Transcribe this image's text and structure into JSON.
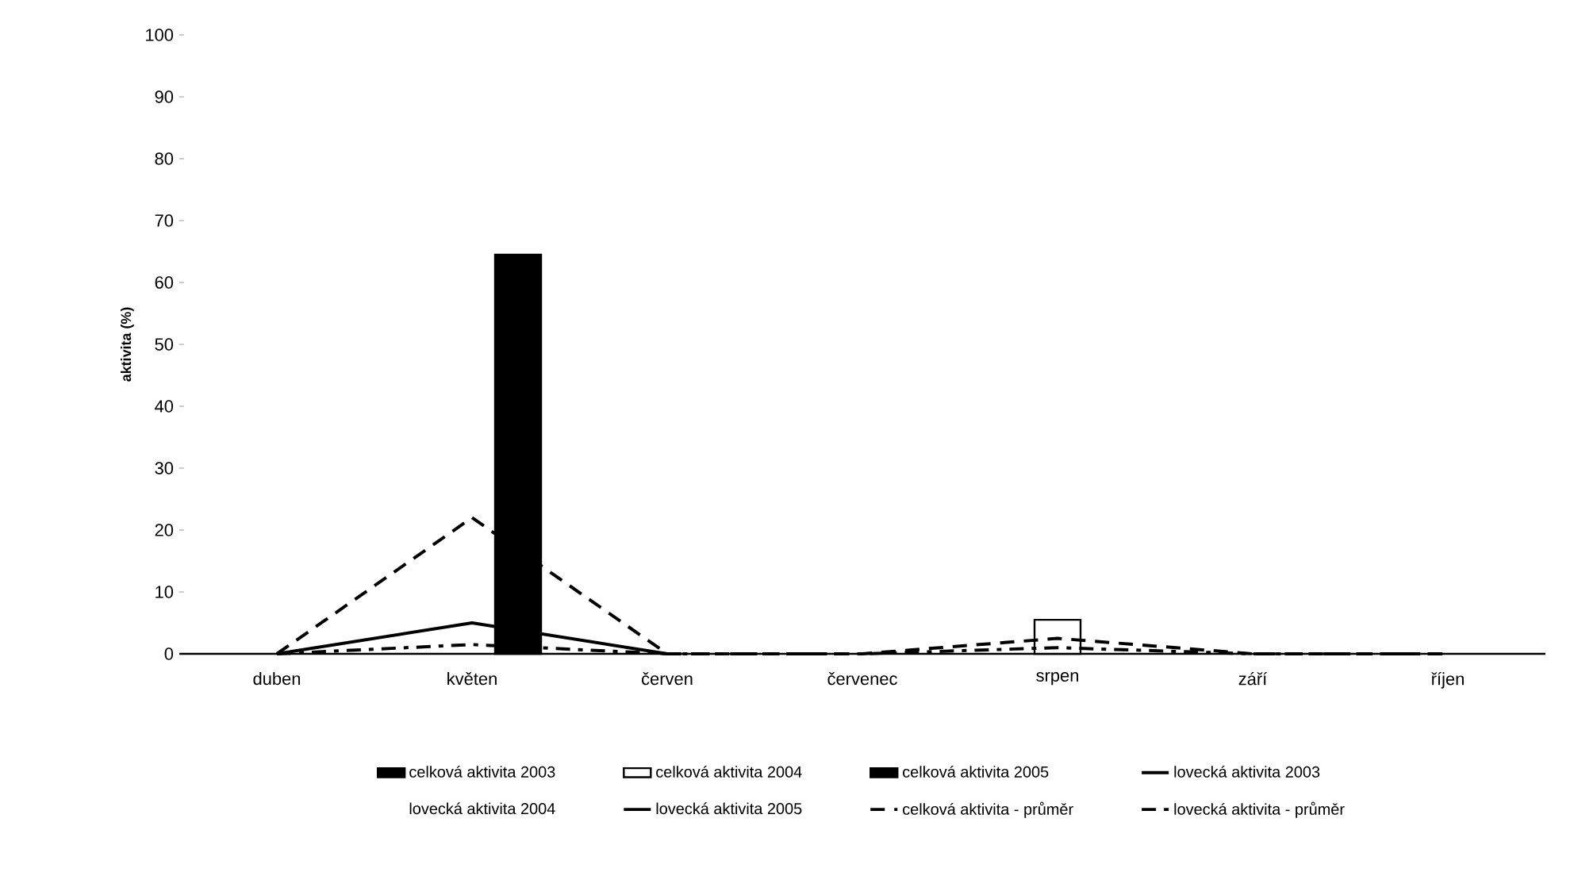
{
  "chart_data": {
    "type": "bar",
    "ylabel": "aktivita (%)",
    "categories": [
      "duben",
      "květen",
      "červen",
      "červenec",
      "srpen",
      "září",
      "říjen"
    ],
    "series": [
      {
        "name": "celková aktivita 2003",
        "color": "#000000",
        "values": [
          null,
          null,
          null,
          null,
          null,
          null,
          null
        ]
      },
      {
        "name": "celková aktivita 2004",
        "color": "#ffffff",
        "values": [
          null,
          null,
          null,
          null,
          5.5,
          null,
          null
        ]
      },
      {
        "name": "celková aktivita 2005",
        "color": "#000000",
        "values": [
          null,
          64.5,
          null,
          null,
          null,
          null,
          null
        ]
      },
      {
        "name": "lovecká aktivita 2003",
        "type": "line",
        "color": "#000000",
        "line_style": "solid",
        "values": [
          0,
          5,
          0,
          null,
          null,
          null,
          null
        ]
      },
      {
        "name": "lovecká aktivita 2004",
        "type": "line",
        "values": [
          null,
          null,
          null,
          null,
          null,
          null,
          null
        ]
      },
      {
        "name": "lovecká aktivita 2005",
        "type": "line",
        "color": "#000000",
        "line_style": "solid",
        "values": [
          null,
          null,
          null,
          null,
          null,
          null,
          null
        ]
      },
      {
        "name": "celková aktivita - průměr",
        "type": "line",
        "color": "#000000",
        "line_style": "dashed",
        "values": [
          0,
          22,
          0,
          0,
          2.5,
          0,
          0
        ]
      },
      {
        "name": "lovecká aktivita - průměr",
        "type": "line",
        "color": "#000000",
        "line_style": "dashdot",
        "values": [
          0,
          1.5,
          0,
          0,
          1,
          0,
          0
        ]
      }
    ],
    "ylim": [
      0,
      100
    ],
    "yticks": [
      0,
      10,
      20,
      30,
      40,
      50,
      60,
      70,
      80,
      90,
      100
    ],
    "legend": "bottom",
    "marker": "none"
  }
}
